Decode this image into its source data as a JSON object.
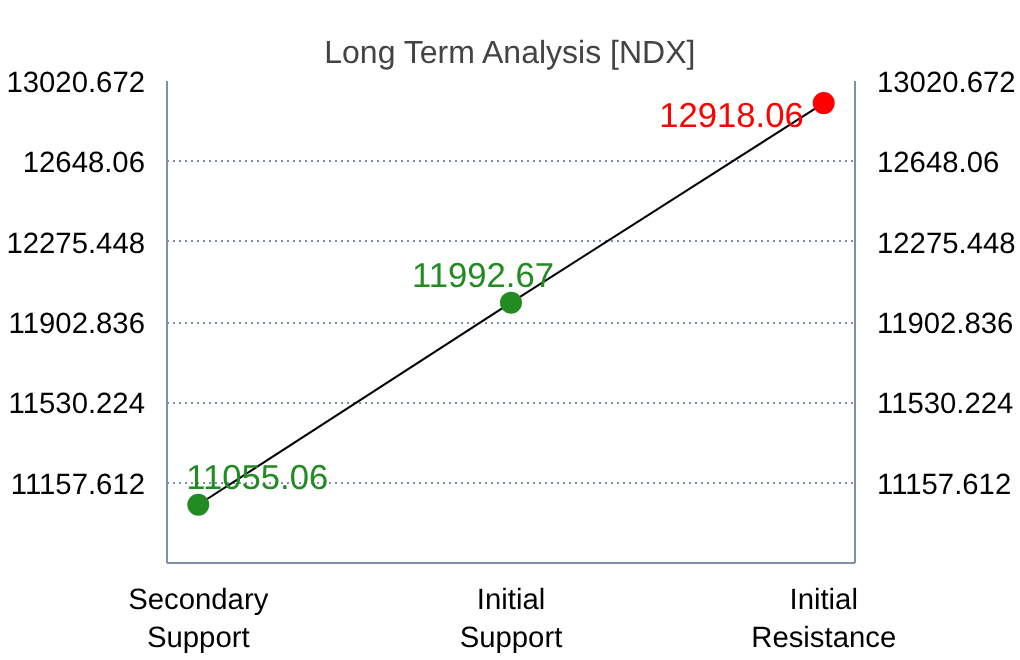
{
  "chart_data": {
    "type": "line",
    "title": "Long Term Analysis [NDX]",
    "categories": [
      "Secondary\nSupport",
      "Initial\nSupport",
      "Initial\nResistance"
    ],
    "series": [
      {
        "color": "#000000",
        "colors": [
          "#228b22",
          "#228b22",
          "#ff0000"
        ],
        "values": [
          11055.06,
          11992.67,
          12918.06
        ]
      }
    ],
    "ylim": [
      10785,
      13020.672
    ],
    "yticks": [
      11157.612,
      11530.224,
      11902.836,
      12275.448,
      12648.06,
      13020.672
    ],
    "y2lim": [
      10785,
      13020.672
    ],
    "y2ticks": [
      11157.612,
      11530.224,
      11902.836,
      12275.448,
      12648.06,
      13020.672
    ],
    "grid": true,
    "marker": "circle",
    "line_style": "solid",
    "data_labels": true
  }
}
